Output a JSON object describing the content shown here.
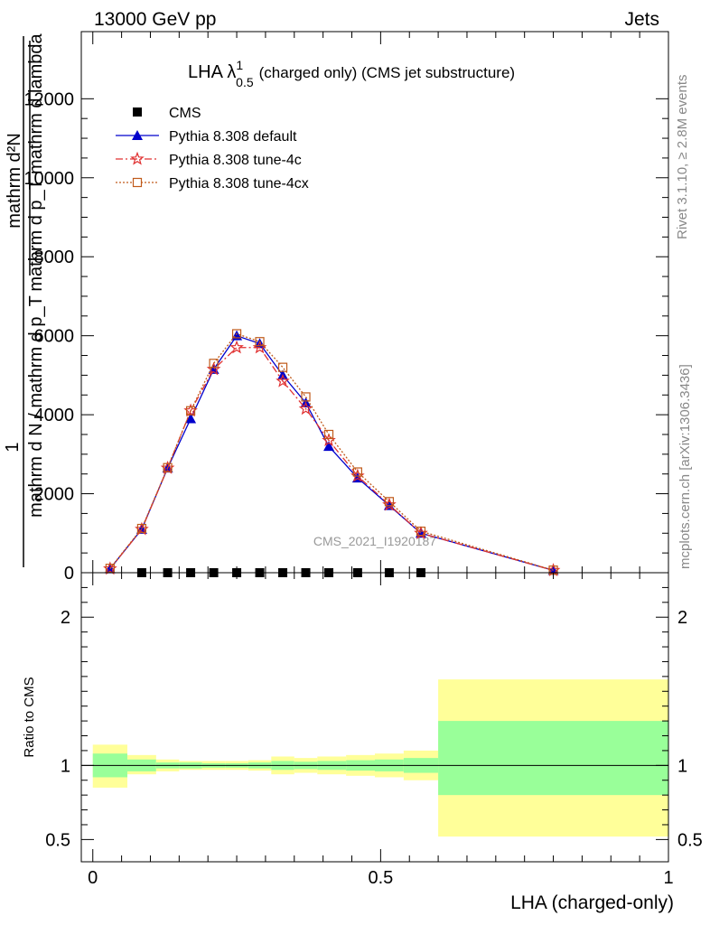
{
  "header": {
    "left": "13000 GeV pp",
    "right": "Jets"
  },
  "side_text": {
    "rivet": "Rivet 3.1.10, ≥ 2.8M events",
    "mcplots": "mcplots.cern.ch [arXiv:1306.3436]"
  },
  "colors": {
    "cms": "#000000",
    "default": "#0000cc",
    "tune4c": "#e03030",
    "tune4cx": "#c05a1a",
    "band_inner": "#99ff99",
    "band_outer": "#ffff99"
  },
  "chart_data": [
    {
      "type": "line",
      "title_main": "LHA λ",
      "title_sup": "1",
      "title_sub": "0.5",
      "title_rest": "(charged only) (CMS jet substructure)",
      "ylabel_top": "mathrm d²N",
      "ylabel_mid": "mathrm d p_T mathrm d lambda",
      "ylabel_one": "1",
      "ylabel_bottom": "mathrm d N / mathrm d p_T",
      "watermark": "CMS_2021_I1920187",
      "xlim": [
        -0.02,
        1.0
      ],
      "ylim": [
        0,
        13700
      ],
      "yticks": [
        0,
        2000,
        4000,
        6000,
        8000,
        10000,
        12000
      ],
      "yticklabels": [
        "0",
        "2000",
        "4000",
        "6000",
        "8000",
        "10000",
        "12000"
      ],
      "x": [
        0.03,
        0.085,
        0.13,
        0.17,
        0.21,
        0.25,
        0.29,
        0.33,
        0.37,
        0.41,
        0.46,
        0.515,
        0.57,
        0.8
      ],
      "series": [
        {
          "name": "CMS",
          "marker": "square",
          "x": [
            0.085,
            0.13,
            0.17,
            0.21,
            0.25,
            0.29,
            0.33,
            0.37,
            0.41,
            0.46,
            0.515,
            0.57
          ],
          "values": [
            0,
            0,
            0,
            0,
            0,
            0,
            0,
            0,
            0,
            0,
            0,
            0
          ]
        },
        {
          "name": "Pythia 8.308 default",
          "marker": "triangle",
          "dash": "",
          "values": [
            100,
            1100,
            2650,
            3900,
            5150,
            6000,
            5800,
            5000,
            4300,
            3200,
            2400,
            1700,
            1000,
            60
          ]
        },
        {
          "name": "Pythia 8.308 tune-4c",
          "marker": "star",
          "dash": "8,3,2,3",
          "values": [
            100,
            1100,
            2650,
            4100,
            5150,
            5700,
            5700,
            4850,
            4150,
            3350,
            2450,
            1720,
            1000,
            60
          ]
        },
        {
          "name": "Pythia 8.308 tune-4cx",
          "marker": "opensquare",
          "dash": "2,2",
          "values": [
            110,
            1120,
            2660,
            4100,
            5300,
            6050,
            5850,
            5200,
            4450,
            3500,
            2550,
            1800,
            1050,
            65
          ]
        }
      ]
    },
    {
      "type": "area",
      "ylabel": "Ratio to CMS",
      "xlabel": "LHA (charged-only)",
      "xlim": [
        -0.02,
        1.0
      ],
      "ylim": [
        0.35,
        2.3
      ],
      "xticks": [
        0,
        0.5,
        1
      ],
      "xticklabels": [
        "0",
        "0.5",
        "1"
      ],
      "yticks": [
        0.5,
        1,
        2
      ],
      "yticklabels": [
        "0.5",
        "1",
        "2"
      ],
      "bins": [
        {
          "lo": 0.0,
          "hi": 0.06,
          "inner": [
            0.92,
            1.08
          ],
          "outer": [
            0.85,
            1.14
          ]
        },
        {
          "lo": 0.06,
          "hi": 0.11,
          "inner": [
            0.96,
            1.04
          ],
          "outer": [
            0.94,
            1.07
          ]
        },
        {
          "lo": 0.11,
          "hi": 0.15,
          "inner": [
            0.98,
            1.02
          ],
          "outer": [
            0.96,
            1.04
          ]
        },
        {
          "lo": 0.15,
          "hi": 0.19,
          "inner": [
            0.98,
            1.02
          ],
          "outer": [
            0.97,
            1.03
          ]
        },
        {
          "lo": 0.19,
          "hi": 0.23,
          "inner": [
            0.985,
            1.015
          ],
          "outer": [
            0.97,
            1.03
          ]
        },
        {
          "lo": 0.23,
          "hi": 0.27,
          "inner": [
            0.985,
            1.015
          ],
          "outer": [
            0.97,
            1.03
          ]
        },
        {
          "lo": 0.27,
          "hi": 0.31,
          "inner": [
            0.98,
            1.02
          ],
          "outer": [
            0.965,
            1.035
          ]
        },
        {
          "lo": 0.31,
          "hi": 0.35,
          "inner": [
            0.97,
            1.03
          ],
          "outer": [
            0.94,
            1.06
          ]
        },
        {
          "lo": 0.35,
          "hi": 0.39,
          "inner": [
            0.975,
            1.025
          ],
          "outer": [
            0.95,
            1.05
          ]
        },
        {
          "lo": 0.39,
          "hi": 0.44,
          "inner": [
            0.97,
            1.03
          ],
          "outer": [
            0.94,
            1.06
          ]
        },
        {
          "lo": 0.44,
          "hi": 0.49,
          "inner": [
            0.965,
            1.035
          ],
          "outer": [
            0.93,
            1.07
          ]
        },
        {
          "lo": 0.49,
          "hi": 0.54,
          "inner": [
            0.96,
            1.04
          ],
          "outer": [
            0.92,
            1.08
          ]
        },
        {
          "lo": 0.54,
          "hi": 0.6,
          "inner": [
            0.95,
            1.05
          ],
          "outer": [
            0.9,
            1.1
          ]
        },
        {
          "lo": 0.6,
          "hi": 1.0,
          "inner": [
            0.8,
            1.3
          ],
          "outer": [
            0.52,
            1.58
          ]
        }
      ]
    }
  ]
}
